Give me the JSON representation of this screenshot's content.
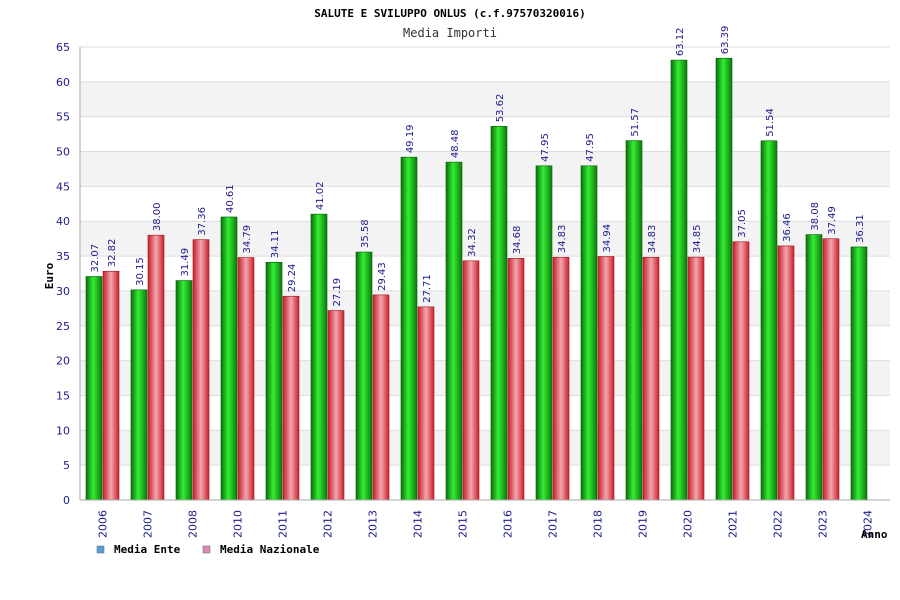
{
  "chart_data": {
    "type": "bar",
    "title": "SALUTE E SVILUPPO ONLUS (c.f.97570320016)",
    "subtitle": "Media Importi",
    "xlabel": "Anno",
    "ylabel": "Euro",
    "ylim": [
      0,
      65
    ],
    "yticks": [
      0,
      5,
      10,
      15,
      20,
      25,
      30,
      35,
      40,
      45,
      50,
      55,
      60,
      65
    ],
    "grid": true,
    "legend_position": "bottom-left",
    "categories": [
      "2006",
      "2007",
      "2008",
      "2010",
      "2011",
      "2012",
      "2013",
      "2014",
      "2015",
      "2016",
      "2017",
      "2018",
      "2019",
      "2020",
      "2021",
      "2022",
      "2023",
      "2024"
    ],
    "series": [
      {
        "name": "Media Ente",
        "color": "#22bb22",
        "legend_color": "#5b9bd5",
        "values": [
          32.07,
          30.15,
          31.49,
          40.61,
          34.11,
          41.02,
          35.58,
          49.19,
          48.48,
          53.62,
          47.95,
          47.95,
          51.57,
          63.12,
          63.39,
          51.54,
          38.08,
          36.31
        ],
        "labels": [
          "32.07",
          "30.15",
          "31.49",
          "40.61",
          "34.11",
          "41.02",
          "35.58",
          "49.19",
          "48.48",
          "53.62",
          "47.95",
          "47.95",
          "51.57",
          "63.12",
          "63.39",
          "51.54",
          "38.08",
          "36.31"
        ]
      },
      {
        "name": "Media Nazionale",
        "color": "#e0303a",
        "legend_color": "#d98cb3",
        "values": [
          32.82,
          38.0,
          37.36,
          34.79,
          29.24,
          27.19,
          29.43,
          27.71,
          34.32,
          34.68,
          34.83,
          34.94,
          34.83,
          34.85,
          37.05,
          36.46,
          37.49,
          null
        ],
        "labels": [
          "32.82",
          "38.00",
          "37.36",
          "34.79",
          "29.24",
          "27.19",
          "29.43",
          "27.71",
          "34.32",
          "34.68",
          "34.83",
          "34.94",
          "34.83",
          "34.85",
          "37.05",
          "36.46",
          "37.49",
          null
        ]
      }
    ]
  }
}
